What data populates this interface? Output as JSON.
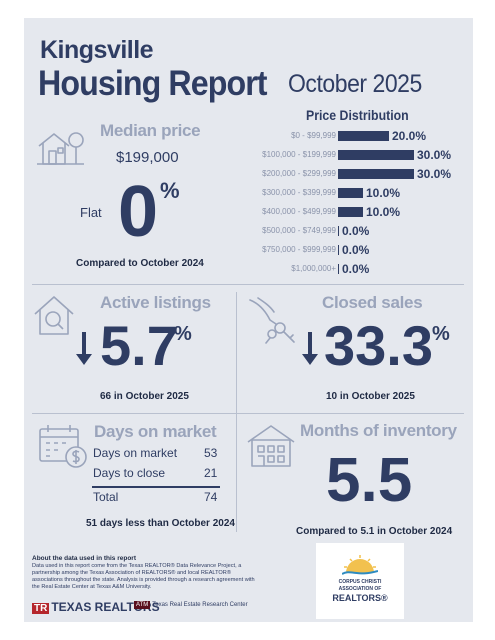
{
  "header": {
    "city": "Kingsville",
    "title": "Housing Report",
    "period": "October 2025"
  },
  "price_distribution": {
    "title": "Price Distribution",
    "rows": [
      {
        "label": "$0 - $99,999",
        "pct": "20.0%",
        "value": 20.0
      },
      {
        "label": "$100,000 - $199,999",
        "pct": "30.0%",
        "value": 30.0
      },
      {
        "label": "$200,000 - $299,999",
        "pct": "30.0%",
        "value": 30.0
      },
      {
        "label": "$300,000 - $399,999",
        "pct": "10.0%",
        "value": 10.0
      },
      {
        "label": "$400,000 - $499,999",
        "pct": "10.0%",
        "value": 10.0
      },
      {
        "label": "$500,000 - $749,999",
        "pct": "0.0%",
        "value": 0.0
      },
      {
        "label": "$750,000 - $999,999",
        "pct": "0.0%",
        "value": 0.0
      },
      {
        "label": "$1,000,000+",
        "pct": "0.0%",
        "value": 0.0
      }
    ]
  },
  "median_price": {
    "title": "Median price",
    "value": "$199,000",
    "trend": "Flat",
    "change": "0",
    "unit": "%",
    "caption": "Compared to October 2024",
    "icon": "house-tree-icon"
  },
  "active_listings": {
    "title": "Active listings",
    "change": "5.7",
    "unit": "%",
    "direction": "down",
    "caption": "66 in October 2025",
    "icon": "house-magnifier-icon"
  },
  "closed_sales": {
    "title": "Closed sales",
    "change": "33.3",
    "unit": "%",
    "direction": "down",
    "caption": "10 in October 2025",
    "icon": "hand-keys-icon"
  },
  "days_on_market": {
    "title": "Days on market",
    "rows": [
      {
        "label": "Days on market",
        "value": "53"
      },
      {
        "label": "Days to close",
        "value": "21"
      }
    ],
    "total_label": "Total",
    "total_value": "74",
    "caption": "51 days less than October 2024",
    "icon": "calendar-dollar-icon"
  },
  "months_inventory": {
    "title": "Months of inventory",
    "value": "5.5",
    "caption": "Compared to 5.1 in October 2024",
    "icon": "building-icon"
  },
  "footer": {
    "title": "About the data used in this report",
    "text": "Data used in this report come from the Texas REALTOR® Data Relevance Project, a partnership among the Texas Association of REALTORS® and local REALTOR® associations throughout the state. Analysis is provided through a research agreement with the Real Estate Center at Texas A&M University.",
    "logo_tr": "TEXAS REALTORS",
    "logo_rec": "Texas Real Estate Research Center",
    "assoc_line1": "CORPUS CHRISTI",
    "assoc_line2": "ASSOCIATION OF",
    "assoc_line3": "REALTORS®"
  },
  "colors": {
    "navy": "#2f3d63",
    "muted": "#9aa4bb",
    "panel": "#e5e8ee"
  }
}
